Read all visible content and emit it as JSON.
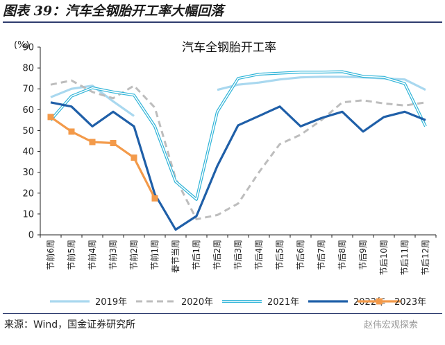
{
  "figure": {
    "title": "图表 39：汽车全钢胎开工率大幅回落",
    "source": "来源：Wind，国金证券研究所",
    "watermark": "赵伟宏观探索"
  },
  "chart_data": {
    "type": "line",
    "title": "汽车全钢胎开工率",
    "ylabel": "(%)",
    "xlabel": "",
    "ylim": [
      0,
      90
    ],
    "yticks": [
      0,
      10,
      20,
      30,
      40,
      50,
      60,
      70,
      80,
      90
    ],
    "grid": false,
    "legend_position": "bottom",
    "categories": [
      "节前6周",
      "节前5周",
      "节前4周",
      "节前3周",
      "节前2周",
      "节前1周",
      "春节当周",
      "节后1周",
      "节后2周",
      "节后3周",
      "节后4周",
      "节后5周",
      "节后6周",
      "节后7周",
      "节后8周",
      "节后9周",
      "节后10周",
      "节后11周",
      "节后12周"
    ],
    "series": [
      {
        "name": "2019年",
        "style": "solid-light",
        "color": "#a9d8ef",
        "values": [
          66,
          70,
          71.5,
          64,
          57,
          null,
          null,
          null,
          69.5,
          72,
          73,
          74.5,
          75.5,
          75.8,
          75.8,
          75.5,
          75,
          74.5,
          69.5
        ]
      },
      {
        "name": "2020年",
        "style": "dashed",
        "color": "#bdbdbd",
        "values": [
          72,
          74,
          68.5,
          65.5,
          71.5,
          61,
          27,
          7.5,
          9.5,
          15,
          30,
          43.5,
          48,
          55,
          63.5,
          64.5,
          63,
          62,
          63.5
        ]
      },
      {
        "name": "2021年",
        "style": "double",
        "color": "#2fb4d8",
        "values": [
          55,
          66.5,
          70.5,
          68.5,
          67,
          52,
          25.5,
          17,
          59,
          75,
          77,
          77.5,
          78,
          78,
          78.2,
          76,
          75.5,
          72.5,
          52
        ]
      },
      {
        "name": "2022年",
        "style": "solid-thick",
        "color": "#1f5fa8",
        "values": [
          63.5,
          61.5,
          52,
          59,
          52,
          19.5,
          2.5,
          9,
          33,
          52.5,
          57,
          61.5,
          52,
          56,
          59,
          49.5,
          56.5,
          59,
          55
        ]
      },
      {
        "name": "2023年",
        "style": "marker",
        "color": "#f39a4a",
        "values": [
          56.5,
          49.5,
          44.5,
          44,
          37,
          17.5,
          null,
          null,
          null,
          null,
          null,
          null,
          null,
          null,
          null,
          null,
          null,
          null,
          null
        ]
      }
    ]
  }
}
